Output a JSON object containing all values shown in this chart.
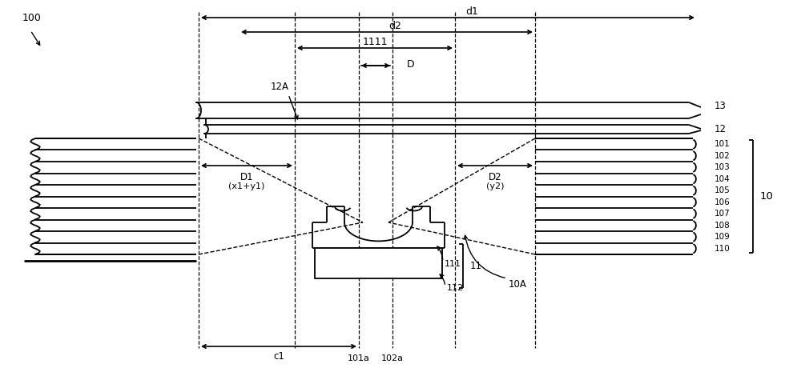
{
  "bg_color": "#ffffff",
  "fig_width": 10.0,
  "fig_height": 4.65,
  "label_100": "100",
  "label_13": "13",
  "label_12": "12",
  "label_10": "10",
  "label_10A": "10A",
  "label_11": "11",
  "label_12A": "12A",
  "label_d1": "d1",
  "label_d2": "d2",
  "label_lll1": "1111",
  "label_D": "D",
  "label_D1": "D1",
  "label_D1sub": "(x1+y1)",
  "label_D2": "D2",
  "label_D2sub": "(y2)",
  "label_c1": "c1",
  "label_101a": "101a",
  "label_102a": "102a",
  "label_111": "111",
  "label_112": "112",
  "wire_labels": [
    "101",
    "102",
    "103",
    "104",
    "105",
    "106",
    "107",
    "108",
    "109",
    "110"
  ]
}
